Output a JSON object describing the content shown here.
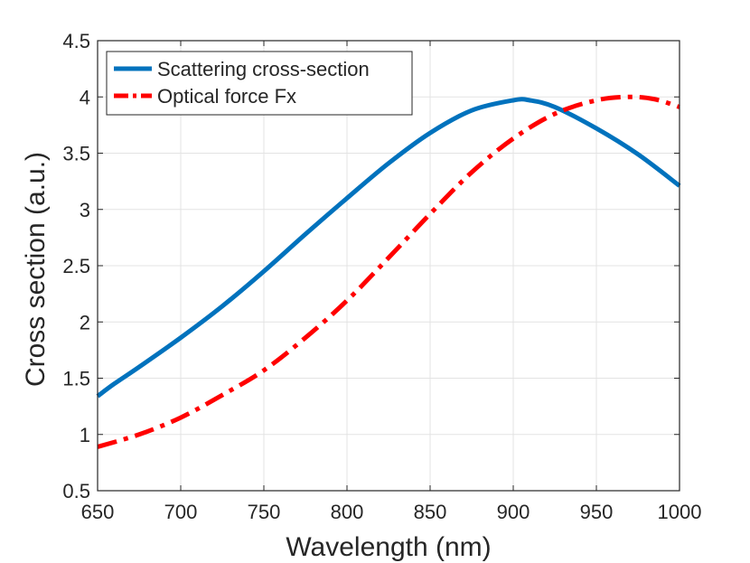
{
  "chart_data": {
    "type": "line",
    "title": "",
    "xlabel": "Wavelength (nm)",
    "ylabel": "Cross section (a.u.)",
    "xlim": [
      650,
      1000
    ],
    "ylim": [
      0.5,
      4.5
    ],
    "xticks": [
      650,
      700,
      750,
      800,
      850,
      900,
      950,
      1000
    ],
    "yticks": [
      0.5,
      1,
      1.5,
      2,
      2.5,
      3,
      3.5,
      4,
      4.5
    ],
    "xtick_labels": [
      "650",
      "700",
      "750",
      "800",
      "850",
      "900",
      "950",
      "1000"
    ],
    "ytick_labels": [
      "0.5",
      "1",
      "1.5",
      "2",
      "2.5",
      "3",
      "3.5",
      "4",
      "4.5"
    ],
    "grid": true,
    "legend_position": "top-left",
    "series": [
      {
        "name": "Scattering cross-section",
        "color": "#0072BD",
        "line_style": "solid",
        "x": [
          650,
          660,
          675,
          700,
          725,
          750,
          775,
          800,
          825,
          850,
          875,
          900,
          910,
          925,
          950,
          975,
          1000
        ],
        "y": [
          1.34,
          1.45,
          1.6,
          1.86,
          2.14,
          2.45,
          2.78,
          3.1,
          3.41,
          3.68,
          3.88,
          3.97,
          3.97,
          3.91,
          3.72,
          3.49,
          3.21
        ]
      },
      {
        "name": "Optical force Fx",
        "color": "#FF0000",
        "line_style": "dash-dot",
        "x": [
          650,
          675,
          700,
          725,
          750,
          775,
          800,
          825,
          850,
          875,
          900,
          925,
          950,
          970,
          985,
          1000
        ],
        "y": [
          0.89,
          1.0,
          1.15,
          1.35,
          1.57,
          1.86,
          2.19,
          2.57,
          2.96,
          3.33,
          3.63,
          3.85,
          3.97,
          4.0,
          3.98,
          3.91
        ]
      }
    ]
  }
}
